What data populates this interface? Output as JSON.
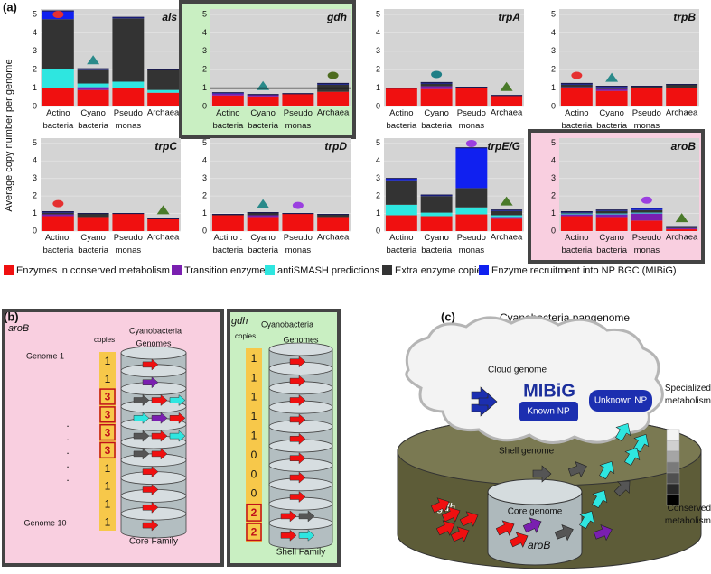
{
  "figure_label_a": "(a)",
  "y_label": "Average copy number per genome",
  "legend": [
    {
      "name": "Enzymes in conserved metabolism",
      "color": "#f01010"
    },
    {
      "name": "Transition enzymes",
      "color": "#7a1fb0"
    },
    {
      "name": "antiSMASH predictions",
      "color": "#2ee6e0"
    },
    {
      "name": "Extra enzyme copies",
      "color": "#333333"
    },
    {
      "name": "Enzyme recruitment into NP BGC (MIBiG)",
      "color": "#1020f0"
    }
  ],
  "chart_data": [
    {
      "type": "bar",
      "stacked": true,
      "title": "als",
      "categories": [
        "Actino\nbacteria",
        "Cyano\nbacteria",
        "Pseudo\nmonas",
        "Archaea"
      ],
      "ylim": [
        0,
        5.3
      ],
      "yticks": [
        0,
        1,
        2,
        3,
        4,
        5
      ],
      "grid": true,
      "series": [
        {
          "values": [
            1.0,
            0.9,
            1.0,
            0.75
          ]
        },
        {
          "values": [
            0,
            0.15,
            0,
            0
          ]
        },
        {
          "values": [
            1.05,
            0.2,
            0.35,
            0.15
          ]
        },
        {
          "values": [
            2.7,
            0.75,
            3.45,
            1.1
          ]
        },
        {
          "values": [
            0.45,
            0.05,
            0.05,
            0
          ]
        }
      ]
    },
    {
      "type": "bar",
      "stacked": true,
      "title": "gdh",
      "categories": [
        "Actino\nbacteria",
        "Cyano\nbacteria",
        "Pseudo\nmonas",
        "Archaea"
      ],
      "ylim": [
        0,
        5.3
      ],
      "yticks": [
        0,
        1,
        2,
        3,
        4,
        5
      ],
      "grid": true,
      "reference_line": 1,
      "highlight": "#c9efc2",
      "series": [
        {
          "values": [
            0.6,
            0.55,
            0.7,
            0.8
          ]
        },
        {
          "values": [
            0.1,
            0.1,
            0,
            0
          ]
        },
        {
          "values": [
            0,
            0,
            0,
            0
          ]
        },
        {
          "values": [
            0,
            0,
            0,
            0.4
          ]
        },
        {
          "values": [
            0.05,
            0,
            0,
            0.05
          ]
        }
      ]
    },
    {
      "type": "bar",
      "stacked": true,
      "title": "trpA",
      "categories": [
        "Actino\nbacteria",
        "Cyano\nbacteria",
        "Pseudo\nmonas",
        "Archaea"
      ],
      "ylim": [
        0,
        5.3
      ],
      "yticks": [
        0,
        1,
        2,
        3,
        4,
        5
      ],
      "grid": true,
      "series": [
        {
          "values": [
            1.0,
            0.95,
            1.0,
            0.6
          ]
        },
        {
          "values": [
            0,
            0.15,
            0,
            0
          ]
        },
        {
          "values": [
            0,
            0,
            0,
            0
          ]
        },
        {
          "values": [
            0,
            0.15,
            0.05,
            0
          ]
        },
        {
          "values": [
            0,
            0.05,
            0,
            0
          ]
        }
      ]
    },
    {
      "type": "bar",
      "stacked": true,
      "title": "trpB",
      "categories": [
        "Actino\nbacteria",
        "Cyano\nbacteria",
        "Pseudo\nmonas",
        "Archaea"
      ],
      "ylim": [
        0,
        5.3
      ],
      "yticks": [
        0,
        1,
        2,
        3,
        4,
        5
      ],
      "grid": true,
      "series": [
        {
          "values": [
            1.0,
            0.85,
            1.0,
            1.0
          ]
        },
        {
          "values": [
            0.05,
            0.1,
            0,
            0
          ]
        },
        {
          "values": [
            0,
            0,
            0,
            0
          ]
        },
        {
          "values": [
            0.15,
            0.1,
            0.1,
            0.2
          ]
        },
        {
          "values": [
            0.05,
            0.05,
            0,
            0
          ]
        }
      ]
    },
    {
      "type": "bar",
      "stacked": true,
      "title": "trpC",
      "categories": [
        "Actino.\nbacteria",
        "Cyano\nbacteria",
        "Pseudo\nmonas",
        "Archaea"
      ],
      "ylim": [
        0,
        5.3
      ],
      "yticks": [
        0,
        1,
        2,
        3,
        4,
        5
      ],
      "grid": true,
      "series": [
        {
          "values": [
            0.85,
            0.8,
            1.0,
            0.7
          ]
        },
        {
          "values": [
            0.1,
            0,
            0,
            0
          ]
        },
        {
          "values": [
            0,
            0,
            0,
            0
          ]
        },
        {
          "values": [
            0.1,
            0.2,
            0,
            0
          ]
        },
        {
          "values": [
            0.05,
            0,
            0,
            0
          ]
        }
      ]
    },
    {
      "type": "bar",
      "stacked": true,
      "title": "trpD",
      "categories": [
        "Actino .\nbacteria",
        "Cyano\nbacteria",
        "Pseudo\nmonas",
        "Archaea"
      ],
      "ylim": [
        0,
        5.3
      ],
      "yticks": [
        0,
        1,
        2,
        3,
        4,
        5
      ],
      "grid": true,
      "series": [
        {
          "values": [
            0.9,
            0.8,
            1.0,
            0.8
          ]
        },
        {
          "values": [
            0,
            0.1,
            0,
            0
          ]
        },
        {
          "values": [
            0,
            0,
            0,
            0
          ]
        },
        {
          "values": [
            0.05,
            0.15,
            0,
            0.15
          ]
        },
        {
          "values": [
            0,
            0,
            0,
            0
          ]
        }
      ]
    },
    {
      "type": "bar",
      "stacked": true,
      "title": "trpE/G",
      "categories": [
        "Actino\nbacteria",
        "Cyano\nbacteria",
        "Pseudo\nmonas",
        "Archaea"
      ],
      "ylim": [
        0,
        5.3
      ],
      "yticks": [
        0,
        1,
        2,
        3,
        4,
        5
      ],
      "grid": true,
      "series": [
        {
          "values": [
            0.9,
            0.85,
            0.95,
            0.7
          ]
        },
        {
          "values": [
            0,
            0,
            0,
            0.1
          ]
        },
        {
          "values": [
            0.6,
            0.2,
            0.4,
            0.1
          ]
        },
        {
          "values": [
            1.4,
            0.95,
            1.1,
            0.25
          ]
        },
        {
          "values": [
            0.1,
            0.05,
            2.3,
            0.05
          ]
        }
      ]
    },
    {
      "type": "bar",
      "stacked": true,
      "title": "aroB",
      "categories": [
        "Actino\nbacteria",
        "Cyano\nbacteria",
        "Pseudo\nmonas",
        "Archaea"
      ],
      "ylim": [
        0,
        5.3
      ],
      "yticks": [
        0,
        1,
        2,
        3,
        4,
        5
      ],
      "grid": true,
      "highlight": "#f9cfe0",
      "series": [
        {
          "values": [
            0.85,
            0.8,
            0.6,
            0.1
          ]
        },
        {
          "values": [
            0.1,
            0.15,
            0.4,
            0.05
          ]
        },
        {
          "values": [
            0.05,
            0.05,
            0.05,
            0
          ]
        },
        {
          "values": [
            0.05,
            0.15,
            0.15,
            0.05
          ]
        },
        {
          "values": [
            0.05,
            0.05,
            0.1,
            0.05
          ]
        }
      ]
    }
  ],
  "panel_b": {
    "label": "(b)",
    "core": {
      "gene": "aroB",
      "copies_label": "copies",
      "organism": "Cyanobacteria",
      "genomes_label": "Genomes",
      "first_genome": "Genome 1",
      "last_genome": "Genome 10",
      "copies": [
        "1",
        "1",
        "3",
        "3",
        "3",
        "3",
        "1",
        "1",
        "1",
        "1"
      ],
      "family": "Core Family"
    },
    "shell": {
      "gene": "gdh",
      "copies_label": "copies",
      "organism": "Cyanobacteria",
      "genomes_label": "Genomes",
      "copies": [
        "1",
        "1",
        "1",
        "1",
        "1",
        "0",
        "0",
        "0",
        "2",
        "2"
      ],
      "family": "Shell Family"
    }
  },
  "panel_c": {
    "label": "(c)",
    "title": "Cyanobacteria pangenome",
    "cloud": "Cloud genome",
    "mibig": "MIBiG",
    "known": "Known NP",
    "unknown": "Unknown NP",
    "specialized": "Specialized\nmetabolism",
    "conserved": "Conserved\nmetabolism",
    "shell": "Shell genome",
    "core": "Core genome",
    "gdh": "gdh",
    "arob": "aroB"
  }
}
